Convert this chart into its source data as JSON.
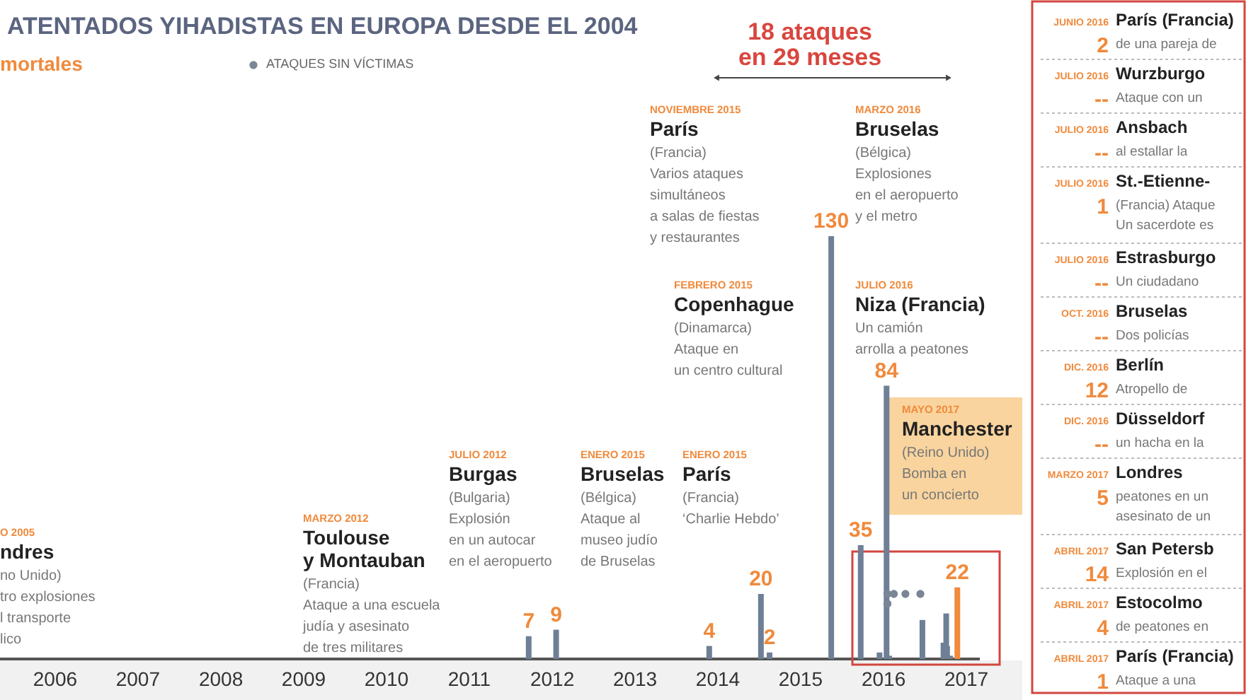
{
  "chart_data": {
    "type": "bar",
    "title": "ATENTADOS YIHADISTAS EN EUROPA DESDE EL 2004",
    "subtitle": "mortales",
    "xlim": [
      "2005-12",
      "2018-01"
    ],
    "xticks": [
      {
        "value": "2006-07",
        "label": "2006"
      },
      {
        "value": "2007-07",
        "label": "2007"
      },
      {
        "value": "2008-07",
        "label": "2008"
      },
      {
        "value": "2009-07",
        "label": "2009"
      },
      {
        "value": "2010-07",
        "label": "2010"
      },
      {
        "value": "2011-07",
        "label": "2011"
      },
      {
        "value": "2012-07",
        "label": "2012"
      },
      {
        "value": "2013-07",
        "label": "2013"
      },
      {
        "value": "2014-07",
        "label": "2014"
      },
      {
        "value": "2015-07",
        "label": "2015"
      },
      {
        "value": "2016-07",
        "label": "2016"
      },
      {
        "value": "2017-07",
        "label": "2017"
      }
    ],
    "legend": "top left",
    "series": [
      {
        "x": [
          "2012-03-19",
          "2012-07-18",
          "2014-05-24",
          "2015-01-07",
          "2015-02-14",
          "2015-11-13",
          "2016-03-22",
          "2016-06-13",
          "2016-07-14",
          "2016-07-26",
          "2016-12-19",
          "2017-03-22",
          "2017-04-03",
          "2017-04-07",
          "2017-04-20",
          "2017-05-22"
        ],
        "values": [
          7,
          9,
          4,
          20,
          2,
          130,
          35,
          2,
          84,
          1,
          12,
          5,
          14,
          4,
          1,
          22
        ],
        "colors": [
          "#6e7f96",
          "#6e7f96",
          "#6e7f96",
          "#6e7f96",
          "#6e7f96",
          "#6e7f96",
          "#6e7f96",
          "#6e7f96",
          "#6e7f96",
          "#6e7f96",
          "#6e7f96",
          "#6e7f96",
          "#6e7f96",
          "#6e7f96",
          "#6e7f96",
          "#f08a3c"
        ],
        "value_labels": [
          "7",
          "9",
          "4",
          "20",
          "2",
          "130",
          "35",
          null,
          "84",
          null,
          null,
          null,
          null,
          null,
          null,
          "22"
        ]
      },
      {
        "type": "scatter",
        "name": "ATAQUES SIN VÍCTIMAS",
        "color": "#7a8596",
        "x": [
          "2016-07-18",
          "2016-07-18",
          "2016-08-15",
          "2016-10-05",
          "2016-12-10"
        ],
        "values": [
          20,
          17,
          20,
          20,
          20
        ]
      }
    ],
    "annotations": [
      "MARZO 2012",
      "Toulouse\ny Montauban",
      "(Francia)\nAtaque a una escuela\njudía y asesinato\nde tres militares",
      "JULIO 2012",
      "Burgas",
      "(Bulgaria)\nExplosión\nen un autocar\nen el aeropuerto",
      "ENERO 2015",
      "Bruselas",
      "(Bélgica)\nAtaque al\nmuseo judío\nde Bruselas",
      "ENERO 2015",
      "París",
      "(Francia)\n‘Charlie Hebdo’",
      "FEBRERO 2015",
      "Copenhague",
      "(Dinamarca)\nAtaque en\nun centro cultural",
      "NOVIEMBRE 2015",
      "París",
      "(Francia)\nVarios ataques\nsimultáneos\na salas de fiestas\ny restaurantes",
      "MARZO 2016",
      "Bruselas",
      "(Bélgica)\nExplosiones\nen el aeropuerto\ny el metro",
      "JULIO 2016",
      "Niza (Francia)",
      "Un camión\narrolla a peatones",
      "MAYO 2017",
      "Manchester",
      "(Reino Unido)\nBomba en\nun concierto",
      "O 2005",
      "ndres",
      "no Unido)\ntro explosiones\nl transporte\nlico",
      "18 ataques\nen 29 meses",
      "JUNIO 2016",
      "2",
      "París (Francia)",
      "de una pareja de",
      "JULIO 2016",
      "--",
      "Wurzburgo",
      "Ataque con un",
      "JULIO 2016",
      "--",
      "Ansbach",
      "al estallar la",
      "JULIO 2016",
      "1",
      "St.-Etienne-",
      "(Francia) Ataque\nUn sacerdote es",
      "JULIO 2016",
      "--",
      "Estrasburgo",
      "Un ciudadano",
      "OCT. 2016",
      "--",
      "Bruselas",
      "Dos policías",
      "DIC. 2016",
      "12",
      "Berlín",
      "Atropello de",
      "DIC. 2016",
      "--",
      "Düsseldorf",
      "un hacha en la",
      "MARZO 2017",
      "5",
      "Londres",
      "peatones en un\nasesinato de un",
      "ABRIL 2017",
      "14",
      "San Petersb",
      "Explosión en el",
      "ABRIL 2017",
      "4",
      "Estocolmo",
      "de peatones en",
      "ABRIL 2017",
      "1",
      "París (Francia)",
      "Ataque a una"
    ]
  }
}
